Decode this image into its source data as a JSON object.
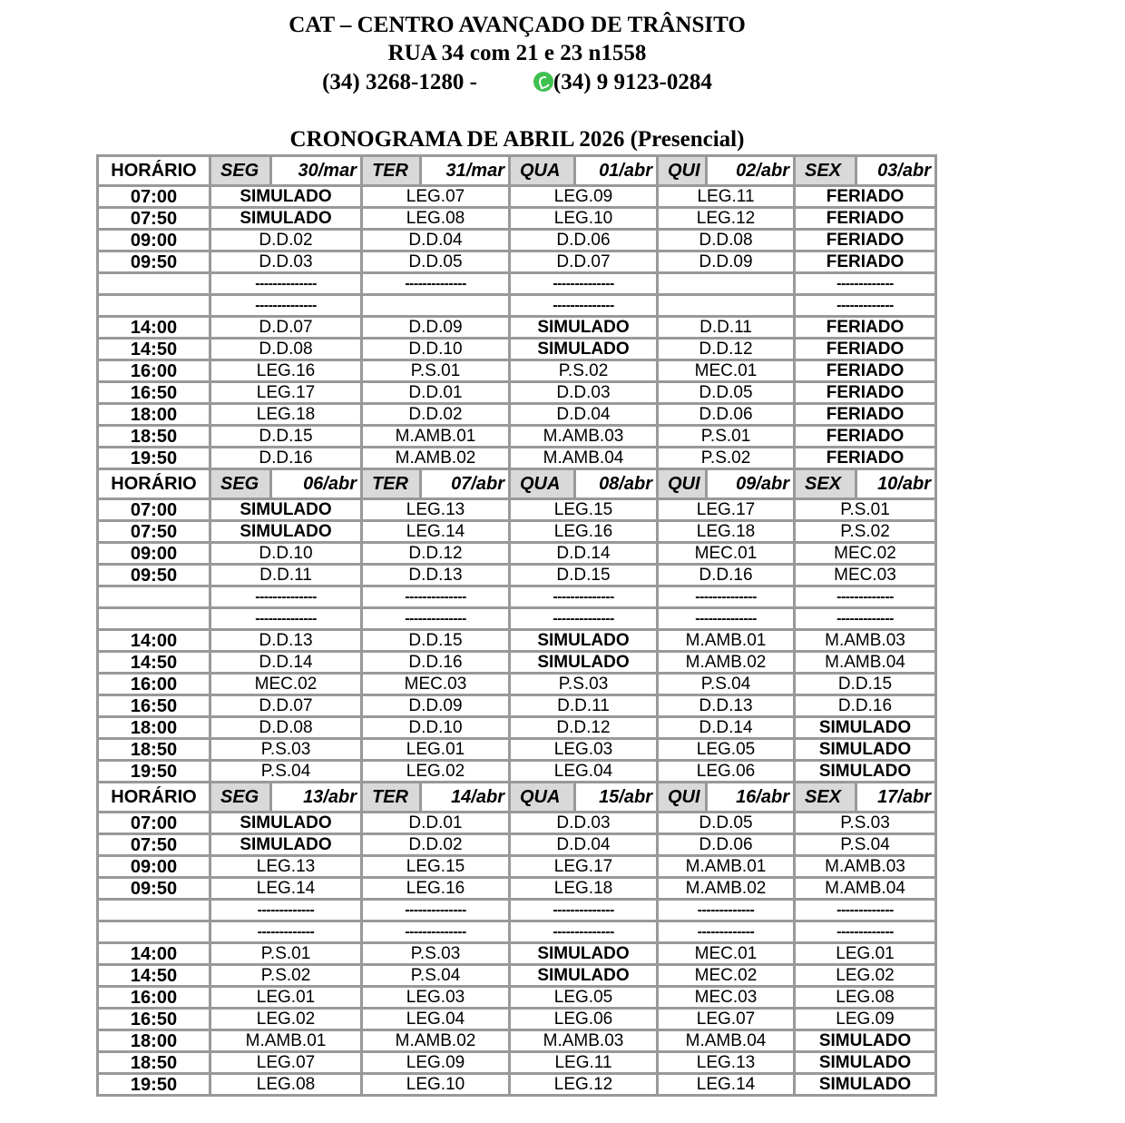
{
  "header": {
    "title": "CAT – CENTRO AVANÇADO DE TRÂNSITO",
    "address": "RUA 34 com 21 e 23 n1558",
    "phone": "(34) 3268-1280 -",
    "whatsapp_icon": "whatsapp-icon",
    "whatsapp": "(34) 9 9123-0284",
    "schedule_title": "CRONOGRAMA DE ABRIL 2026 (Presencial)"
  },
  "time_header": "HORÁRIO",
  "weeks": [
    {
      "days": [
        {
          "day": "SEG",
          "date": "30/mar"
        },
        {
          "day": "TER",
          "date": "31/mar"
        },
        {
          "day": "QUA",
          "date": "01/abr"
        },
        {
          "day": "QUI",
          "date": "02/abr"
        },
        {
          "day": "SEX",
          "date": "03/abr"
        }
      ],
      "rows": [
        {
          "time": "07:00",
          "cells": [
            "SIMULADO",
            "LEG.07",
            "LEG.09",
            "LEG.11",
            "FERIADO"
          ]
        },
        {
          "time": "07:50",
          "cells": [
            "SIMULADO",
            "LEG.08",
            "LEG.10",
            "LEG.12",
            "FERIADO"
          ]
        },
        {
          "time": "09:00",
          "cells": [
            "D.D.02",
            "D.D.04",
            "D.D.06",
            "D.D.08",
            "FERIADO"
          ]
        },
        {
          "time": "09:50",
          "cells": [
            "D.D.03",
            "D.D.05",
            "D.D.07",
            "D.D.09",
            "FERIADO"
          ]
        },
        {
          "time": "",
          "cells": [
            "--------------",
            "--------------",
            "--------------",
            "",
            "-------------"
          ]
        },
        {
          "time": "",
          "cells": [
            "--------------",
            "",
            "--------------",
            "",
            "-------------"
          ]
        },
        {
          "time": "14:00",
          "cells": [
            "D.D.07",
            "D.D.09",
            "SIMULADO",
            "D.D.11",
            "FERIADO"
          ]
        },
        {
          "time": "14:50",
          "cells": [
            "D.D.08",
            "D.D.10",
            "SIMULADO",
            "D.D.12",
            "FERIADO"
          ]
        },
        {
          "time": "16:00",
          "cells": [
            "LEG.16",
            "P.S.01",
            "P.S.02",
            "MEC.01",
            "FERIADO"
          ]
        },
        {
          "time": "16:50",
          "cells": [
            "LEG.17",
            "D.D.01",
            "D.D.03",
            "D.D.05",
            "FERIADO"
          ]
        },
        {
          "time": "18:00",
          "cells": [
            "LEG.18",
            "D.D.02",
            "D.D.04",
            "D.D.06",
            "FERIADO"
          ]
        },
        {
          "time": "18:50",
          "cells": [
            "D.D.15",
            "M.AMB.01",
            "M.AMB.03",
            "P.S.01",
            "FERIADO"
          ]
        },
        {
          "time": "19:50",
          "cells": [
            "D.D.16",
            "M.AMB.02",
            "M.AMB.04",
            "P.S.02",
            "FERIADO"
          ]
        }
      ]
    },
    {
      "days": [
        {
          "day": "SEG",
          "date": "06/abr"
        },
        {
          "day": "TER",
          "date": "07/abr"
        },
        {
          "day": "QUA",
          "date": "08/abr"
        },
        {
          "day": "QUI",
          "date": "09/abr"
        },
        {
          "day": "SEX",
          "date": "10/abr"
        }
      ],
      "rows": [
        {
          "time": "07:00",
          "cells": [
            "SIMULADO",
            "LEG.13",
            "LEG.15",
            "LEG.17",
            "P.S.01"
          ]
        },
        {
          "time": "07:50",
          "cells": [
            "SIMULADO",
            "LEG.14",
            "LEG.16",
            "LEG.18",
            "P.S.02"
          ]
        },
        {
          "time": "09:00",
          "cells": [
            "D.D.10",
            "D.D.12",
            "D.D.14",
            "MEC.01",
            "MEC.02"
          ]
        },
        {
          "time": "09:50",
          "cells": [
            "D.D.11",
            "D.D.13",
            "D.D.15",
            "D.D.16",
            "MEC.03"
          ]
        },
        {
          "time": "",
          "cells": [
            "--------------",
            "--------------",
            "--------------",
            "--------------",
            "-------------"
          ]
        },
        {
          "time": "",
          "cells": [
            "--------------",
            "--------------",
            "--------------",
            "--------------",
            "-------------"
          ]
        },
        {
          "time": "14:00",
          "cells": [
            "D.D.13",
            "D.D.15",
            "SIMULADO",
            "M.AMB.01",
            "M.AMB.03"
          ]
        },
        {
          "time": "14:50",
          "cells": [
            "D.D.14",
            "D.D.16",
            "SIMULADO",
            "M.AMB.02",
            "M.AMB.04"
          ]
        },
        {
          "time": "16:00",
          "cells": [
            "MEC.02",
            "MEC.03",
            "P.S.03",
            "P.S.04",
            "D.D.15"
          ]
        },
        {
          "time": "16:50",
          "cells": [
            "D.D.07",
            "D.D.09",
            "D.D.11",
            "D.D.13",
            "D.D.16"
          ]
        },
        {
          "time": "18:00",
          "cells": [
            "D.D.08",
            "D.D.10",
            "D.D.12",
            "D.D.14",
            "SIMULADO"
          ]
        },
        {
          "time": "18:50",
          "cells": [
            "P.S.03",
            "LEG.01",
            "LEG.03",
            "LEG.05",
            "SIMULADO"
          ]
        },
        {
          "time": "19:50",
          "cells": [
            "P.S.04",
            "LEG.02",
            "LEG.04",
            "LEG.06",
            "SIMULADO"
          ]
        }
      ]
    },
    {
      "days": [
        {
          "day": "SEG",
          "date": "13/abr"
        },
        {
          "day": "TER",
          "date": "14/abr"
        },
        {
          "day": "QUA",
          "date": "15/abr"
        },
        {
          "day": "QUI",
          "date": "16/abr"
        },
        {
          "day": "SEX",
          "date": "17/abr"
        }
      ],
      "rows": [
        {
          "time": "07:00",
          "cells": [
            "SIMULADO",
            "D.D.01",
            "D.D.03",
            "D.D.05",
            "P.S.03"
          ]
        },
        {
          "time": "07:50",
          "cells": [
            "SIMULADO",
            "D.D.02",
            "D.D.04",
            "D.D.06",
            "P.S.04"
          ]
        },
        {
          "time": "09:00",
          "cells": [
            "LEG.13",
            "LEG.15",
            "LEG.17",
            "M.AMB.01",
            "M.AMB.03"
          ]
        },
        {
          "time": "09:50",
          "cells": [
            "LEG.14",
            "LEG.16",
            "LEG.18",
            "M.AMB.02",
            "M.AMB.04"
          ]
        },
        {
          "time": "",
          "cells": [
            "-------------",
            "--------------",
            "--------------",
            "-------------",
            "-------------"
          ]
        },
        {
          "time": "",
          "cells": [
            "-------------",
            "--------------",
            "--------------",
            "-------------",
            "-------------"
          ]
        },
        {
          "time": "14:00",
          "cells": [
            "P.S.01",
            "P.S.03",
            "SIMULADO",
            "MEC.01",
            "LEG.01"
          ]
        },
        {
          "time": "14:50",
          "cells": [
            "P.S.02",
            "P.S.04",
            "SIMULADO",
            "MEC.02",
            "LEG.02"
          ]
        },
        {
          "time": "16:00",
          "cells": [
            "LEG.01",
            "LEG.03",
            "LEG.05",
            "MEC.03",
            "LEG.08"
          ]
        },
        {
          "time": "16:50",
          "cells": [
            "LEG.02",
            "LEG.04",
            "LEG.06",
            "LEG.07",
            "LEG.09"
          ]
        },
        {
          "time": "18:00",
          "cells": [
            "M.AMB.01",
            "M.AMB.02",
            "M.AMB.03",
            "M.AMB.04",
            "SIMULADO"
          ]
        },
        {
          "time": "18:50",
          "cells": [
            "LEG.07",
            "LEG.09",
            "LEG.11",
            "LEG.13",
            "SIMULADO"
          ]
        },
        {
          "time": "19:50",
          "cells": [
            "LEG.08",
            "LEG.10",
            "LEG.12",
            "LEG.14",
            "SIMULADO"
          ]
        }
      ]
    }
  ]
}
